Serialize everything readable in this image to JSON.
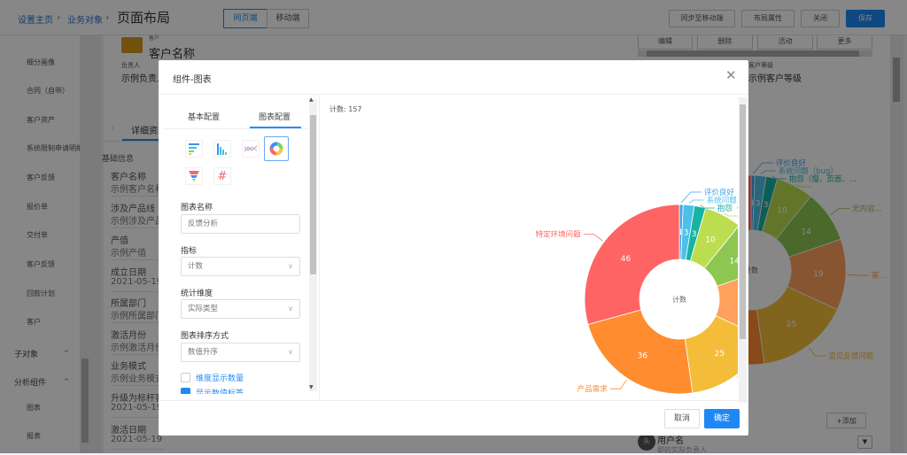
{
  "header": {
    "breadcrumb": [
      "设置主页",
      "业务对象"
    ],
    "title": "页面布局",
    "tabs": [
      "网页端",
      "移动端"
    ],
    "buttons": {
      "sync": "同步至移动端",
      "layout": "布局属性",
      "close": "关闭",
      "save": "保存"
    }
  },
  "sidebar": {
    "items": [
      "细分画像",
      "合同（自带）",
      "客户资产",
      "系统限制申请明细",
      "客户反馈",
      "报价单",
      "交付单",
      "客户反馈",
      "回款计划",
      "客户"
    ],
    "groups": [
      {
        "label": "子对象"
      },
      {
        "label": "分析组件",
        "items": [
          "图表",
          "报表"
        ]
      }
    ]
  },
  "record": {
    "tag": "客户",
    "name": "客户名称",
    "owner_label": "负责人",
    "owner_value": "示例负责人",
    "level_label": "客户等级",
    "level_value": "示例客户等级",
    "actions": [
      "编辑",
      "删除",
      "活动",
      "更多"
    ],
    "tab": "详细资料",
    "section": "基础信息",
    "fields": [
      {
        "label": "客户名称",
        "value": "示例客户名称"
      },
      {
        "label": "涉及产品线",
        "value": "示例涉及产品线"
      },
      {
        "label": "产值",
        "value": "示例产值"
      },
      {
        "label": "成立日期",
        "value": "2021-05-19"
      },
      {
        "label": "所属部门",
        "value": "示例所属部门"
      },
      {
        "label": "激活月份",
        "value": "示例激活月份"
      },
      {
        "label": "业务模式",
        "value": "示例业务模式"
      },
      {
        "label": "升级为标杆客户",
        "value": "2021-05-19"
      },
      {
        "label": "激活日期",
        "value": "2021-05-19"
      }
    ],
    "add_button": "+添加",
    "user_label": "用户名",
    "user_sub": "即的实际负责人",
    "avatar": "头"
  },
  "modal": {
    "title": "组件-图表",
    "tabs": [
      "基本配置",
      "图表配置"
    ],
    "active_tab": "图表配置",
    "chart_types": [
      "bar-horizontal-icon",
      "bar-vertical-icon",
      "line-icon",
      "donut-icon",
      "funnel-icon",
      "number-icon"
    ],
    "selected_chart_type": "donut-icon",
    "chart_name_label": "图表名称",
    "chart_name_value": "反馈分析",
    "metric_label": "指标",
    "metric_value": "计数",
    "dimension_label": "统计维度",
    "dimension_value": "实际类型",
    "sort_label": "图表排序方式",
    "sort_value": "数值升序",
    "show_dim_count": {
      "label": "维度显示数量",
      "checked": false
    },
    "show_value_label": {
      "label": "显示数值标签",
      "checked": true
    },
    "cancel": "取消",
    "confirm": "确定"
  },
  "chart_data": {
    "type": "pie",
    "subtype": "donut",
    "total_label": "计数: 157",
    "center_label": "计数",
    "categories": [
      "评价良好",
      "系统问题（bug）",
      "抱怨（慢、页面、待完善、无理由）",
      "",
      "无内容或内容无意义",
      "客户使用问题",
      "意见反馈问题",
      "产品需求",
      "特定环境问题"
    ],
    "values": [
      1,
      3,
      3,
      10,
      14,
      19,
      25,
      36,
      46
    ],
    "colors": [
      "#45a3ea",
      "#4cc1e8",
      "#17b3a3",
      "#bcdd4f",
      "#8dc651",
      "#ffa05c",
      "#f3bd39",
      "#ff8c2f",
      "#ff6464"
    ],
    "background_short_labels": [
      "评价良好",
      "系统问题（bug）",
      "抱怨（慢、页面、...",
      "",
      "无内容...",
      "客...",
      "意见反馈问题",
      "",
      ""
    ]
  }
}
